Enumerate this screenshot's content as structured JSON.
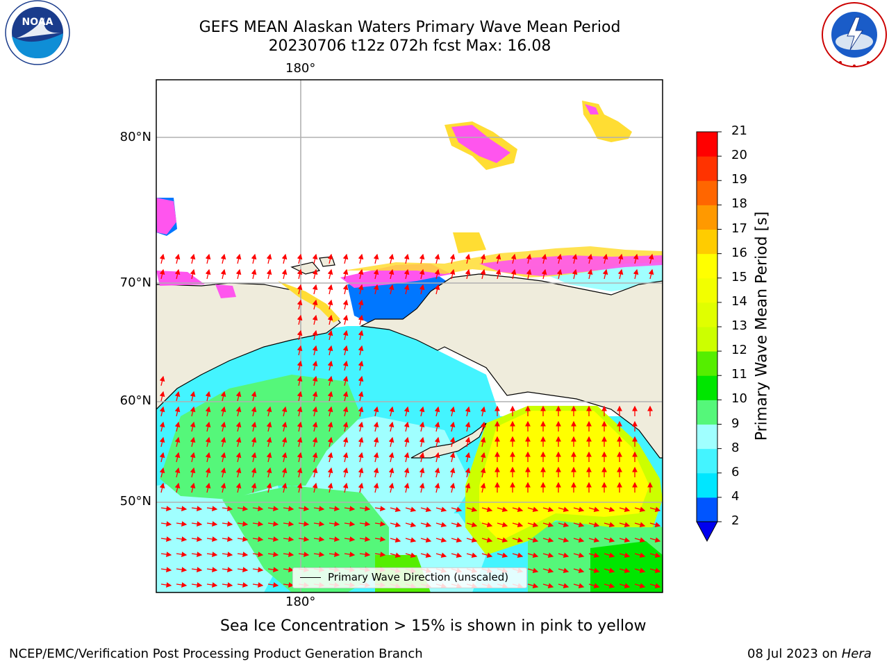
{
  "header": {
    "title_line1": "GEFS MEAN Alaskan Waters Primary Wave Mean Period",
    "title_line2": "20230706 t12z 072h fcst   Max: 16.08"
  },
  "logos": {
    "left": {
      "icon": "noaa-logo",
      "text": "NOAA",
      "ring_text": "NATIONAL OCEANIC AND ATMOSPHERIC ADMINISTRATION · U.S. DEPARTMENT OF COMMERCE"
    },
    "right": {
      "icon": "nws-logo",
      "ring_text": "NATIONAL WEATHER SERVICE"
    }
  },
  "map": {
    "longitude_labels": {
      "top": "180°",
      "bottom": "180°"
    },
    "latitude_labels": [
      "80°N",
      "70°N",
      "60°N",
      "50°N"
    ],
    "colors": {
      "land": "#efecdc",
      "ice_pink": "#ff55ee",
      "ice_yellow": "#ffdd33",
      "arrow": "#ff0000",
      "grid": "#b0b0b0"
    },
    "legend": {
      "label": "Primary Wave Direction (unscaled)"
    }
  },
  "colorbar": {
    "label": "Primary Wave Mean Period [s]",
    "ticks": [
      "2",
      "4",
      "6",
      "8",
      "9",
      "10",
      "11",
      "12",
      "13",
      "14",
      "15",
      "16",
      "17",
      "18",
      "19",
      "20",
      "21"
    ],
    "colors": [
      "#0055ff",
      "#00e6ff",
      "#44f4ff",
      "#a0ffff",
      "#55f77a",
      "#00e600",
      "#55ee00",
      "#ccff00",
      "#e0ff00",
      "#f2ff00",
      "#ffff00",
      "#ffcc00",
      "#ff9900",
      "#ff6600",
      "#ff3300",
      "#ff0000"
    ],
    "under_color": "#0000ee"
  },
  "footnote": "Sea Ice Concentration > 15% is shown in pink to yellow",
  "credits": {
    "left": "NCEP/EMC/Verification Post Processing Product Generation Branch",
    "right_date": "08 Jul 2023 on ",
    "right_host": "Hera"
  }
}
